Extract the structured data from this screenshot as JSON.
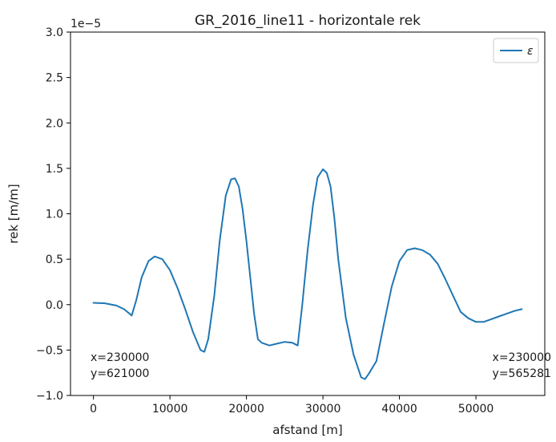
{
  "chart_data": {
    "type": "line",
    "title": "GR_2016_line11 - horizontale rek",
    "xlabel": "afstand [m]",
    "ylabel": "rek [m/m]",
    "offset_label": "1e−5",
    "xlim": [
      -3000,
      59000
    ],
    "ylim": [
      -1.0,
      3.0
    ],
    "xticks": [
      0,
      10000,
      20000,
      30000,
      40000,
      50000
    ],
    "yticks": [
      -1.0,
      -0.5,
      0.0,
      0.5,
      1.0,
      1.5,
      2.0,
      2.5,
      3.0
    ],
    "ytick_labels": [
      "−1.0",
      "−0.5",
      "0.0",
      "0.5",
      "1.0",
      "1.5",
      "2.0",
      "2.5",
      "3.0"
    ],
    "legend_position": "top-right",
    "series": [
      {
        "name": "ε",
        "color": "#1f77b4",
        "x": [
          0,
          1500,
          3000,
          4000,
          5000,
          5600,
          6300,
          7200,
          8000,
          9000,
          10000,
          11000,
          12000,
          13000,
          14000,
          14500,
          15000,
          15800,
          16500,
          17300,
          18000,
          18500,
          19000,
          19500,
          20000,
          20500,
          21000,
          21500,
          22000,
          23000,
          24000,
          25000,
          26000,
          26700,
          27300,
          28000,
          28700,
          29300,
          30000,
          30500,
          31000,
          31500,
          32000,
          33000,
          34000,
          35000,
          35500,
          36000,
          37000,
          38000,
          39000,
          40000,
          41000,
          42000,
          43000,
          44000,
          45000,
          46000,
          47000,
          48000,
          49000,
          50000,
          51000,
          52000,
          53000,
          54000,
          55000,
          56000
        ],
        "y": [
          0.02,
          0.015,
          -0.01,
          -0.05,
          -0.12,
          0.05,
          0.3,
          0.48,
          0.53,
          0.5,
          0.38,
          0.18,
          -0.05,
          -0.3,
          -0.5,
          -0.52,
          -0.38,
          0.1,
          0.7,
          1.2,
          1.38,
          1.39,
          1.3,
          1.05,
          0.7,
          0.3,
          -0.1,
          -0.38,
          -0.42,
          -0.45,
          -0.43,
          -0.41,
          -0.42,
          -0.45,
          0.0,
          0.6,
          1.1,
          1.4,
          1.49,
          1.45,
          1.3,
          0.95,
          0.5,
          -0.15,
          -0.55,
          -0.8,
          -0.82,
          -0.76,
          -0.62,
          -0.2,
          0.2,
          0.48,
          0.6,
          0.62,
          0.6,
          0.55,
          0.45,
          0.28,
          0.1,
          -0.08,
          -0.15,
          -0.19,
          -0.19,
          -0.16,
          -0.13,
          -0.1,
          -0.07,
          -0.05
        ]
      }
    ],
    "annotations": [
      {
        "text": "x=230000",
        "align": "left"
      },
      {
        "text": "y=621000",
        "align": "left"
      },
      {
        "text": "x=230000",
        "align": "right"
      },
      {
        "text": "y=565281",
        "align": "right"
      }
    ]
  }
}
